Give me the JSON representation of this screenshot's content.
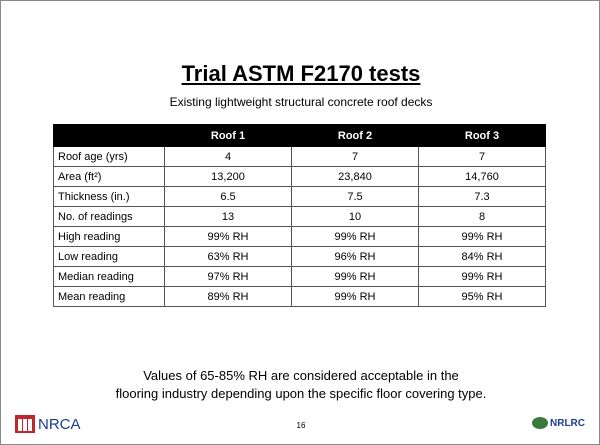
{
  "header": {
    "title": "Trial ASTM F2170 tests",
    "subtitle": "Existing lightweight structural concrete roof decks"
  },
  "table": {
    "columns": [
      "Roof 1",
      "Roof 2",
      "Roof 3"
    ],
    "rows": [
      [
        "Roof age (yrs)",
        "4",
        "7",
        "7"
      ],
      [
        "Area (ft²)",
        "13,200",
        "23,840",
        "14,760"
      ],
      [
        "Thickness (in.)",
        "6.5",
        "7.5",
        "7.3"
      ],
      [
        "No. of readings",
        "13",
        "10",
        "8"
      ],
      [
        "High reading",
        "99% RH",
        "99% RH",
        "99% RH"
      ],
      [
        "Low reading",
        "63% RH",
        "96% RH",
        "84% RH"
      ],
      [
        "Median reading",
        "97% RH",
        "99% RH",
        "99% RH"
      ],
      [
        "Mean reading",
        "89% RH",
        "99% RH",
        "95% RH"
      ]
    ]
  },
  "note": [
    "Values of 65-85% RH are considered acceptable in the",
    "flooring industry depending upon the specific floor covering type."
  ],
  "footer": {
    "left_logo": "NRCA",
    "page_number": "16",
    "right_logo": "NRLRC"
  }
}
